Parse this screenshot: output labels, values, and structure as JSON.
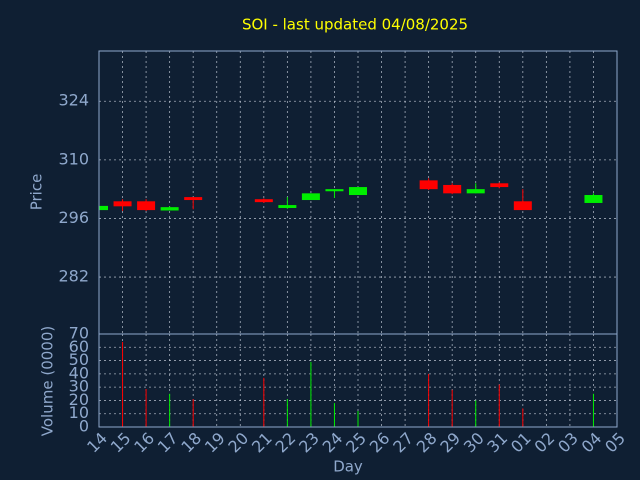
{
  "chart_data": {
    "type": "candlestick",
    "title": "SOI - last updated 04/08/2025",
    "x_label": "Day",
    "y_label": "Price",
    "categories": [
      "14",
      "15",
      "16",
      "17",
      "18",
      "19",
      "20",
      "21",
      "22",
      "23",
      "24",
      "25",
      "26",
      "27",
      "28",
      "29",
      "30",
      "31",
      "01",
      "02",
      "03",
      "04",
      "05"
    ],
    "open": [
      298.0,
      300.1,
      300.1,
      297.9,
      301.1,
      null,
      null,
      300.6,
      298.5,
      300.4,
      302.5,
      301.6,
      null,
      null,
      305.1,
      304.0,
      302.0,
      304.4,
      300.1,
      null,
      null,
      299.7,
      null
    ],
    "high": [
      299.0,
      300.6,
      300.6,
      298.9,
      301.1,
      null,
      null,
      300.8,
      301.1,
      302.0,
      303.0,
      303.5,
      null,
      null,
      305.6,
      304.4,
      304.4,
      304.6,
      303.0,
      null,
      null,
      302.0,
      null
    ],
    "low": [
      298.0,
      297.8,
      297.8,
      297.9,
      298.2,
      null,
      null,
      299.7,
      298.3,
      300.4,
      300.9,
      301.6,
      null,
      null,
      302.8,
      301.8,
      302.0,
      303.2,
      298.0,
      null,
      null,
      299.7,
      null
    ],
    "close": [
      299.0,
      298.9,
      298.0,
      298.7,
      300.4,
      null,
      null,
      299.9,
      299.2,
      302.0,
      303.0,
      303.5,
      null,
      null,
      303.0,
      302.0,
      303.0,
      303.5,
      298.0,
      null,
      null,
      301.6,
      null
    ],
    "ylim": [
      268.4,
      336
    ],
    "yticks": [
      282,
      296,
      310,
      324
    ],
    "up_color": "#00ee00",
    "down_color": "#ff0000",
    "title_color": "#ffff00",
    "grid": true,
    "volume": {
      "label": "Volume (0000)",
      "values": [
        null,
        64,
        28.6,
        25,
        21,
        null,
        null,
        37,
        21,
        49,
        18,
        12,
        null,
        null,
        40,
        28,
        20,
        32,
        14,
        null,
        null,
        25,
        null
      ],
      "ylim": [
        0,
        70
      ],
      "yticks": [
        0,
        10,
        20,
        30,
        40,
        50,
        60,
        70
      ]
    }
  }
}
